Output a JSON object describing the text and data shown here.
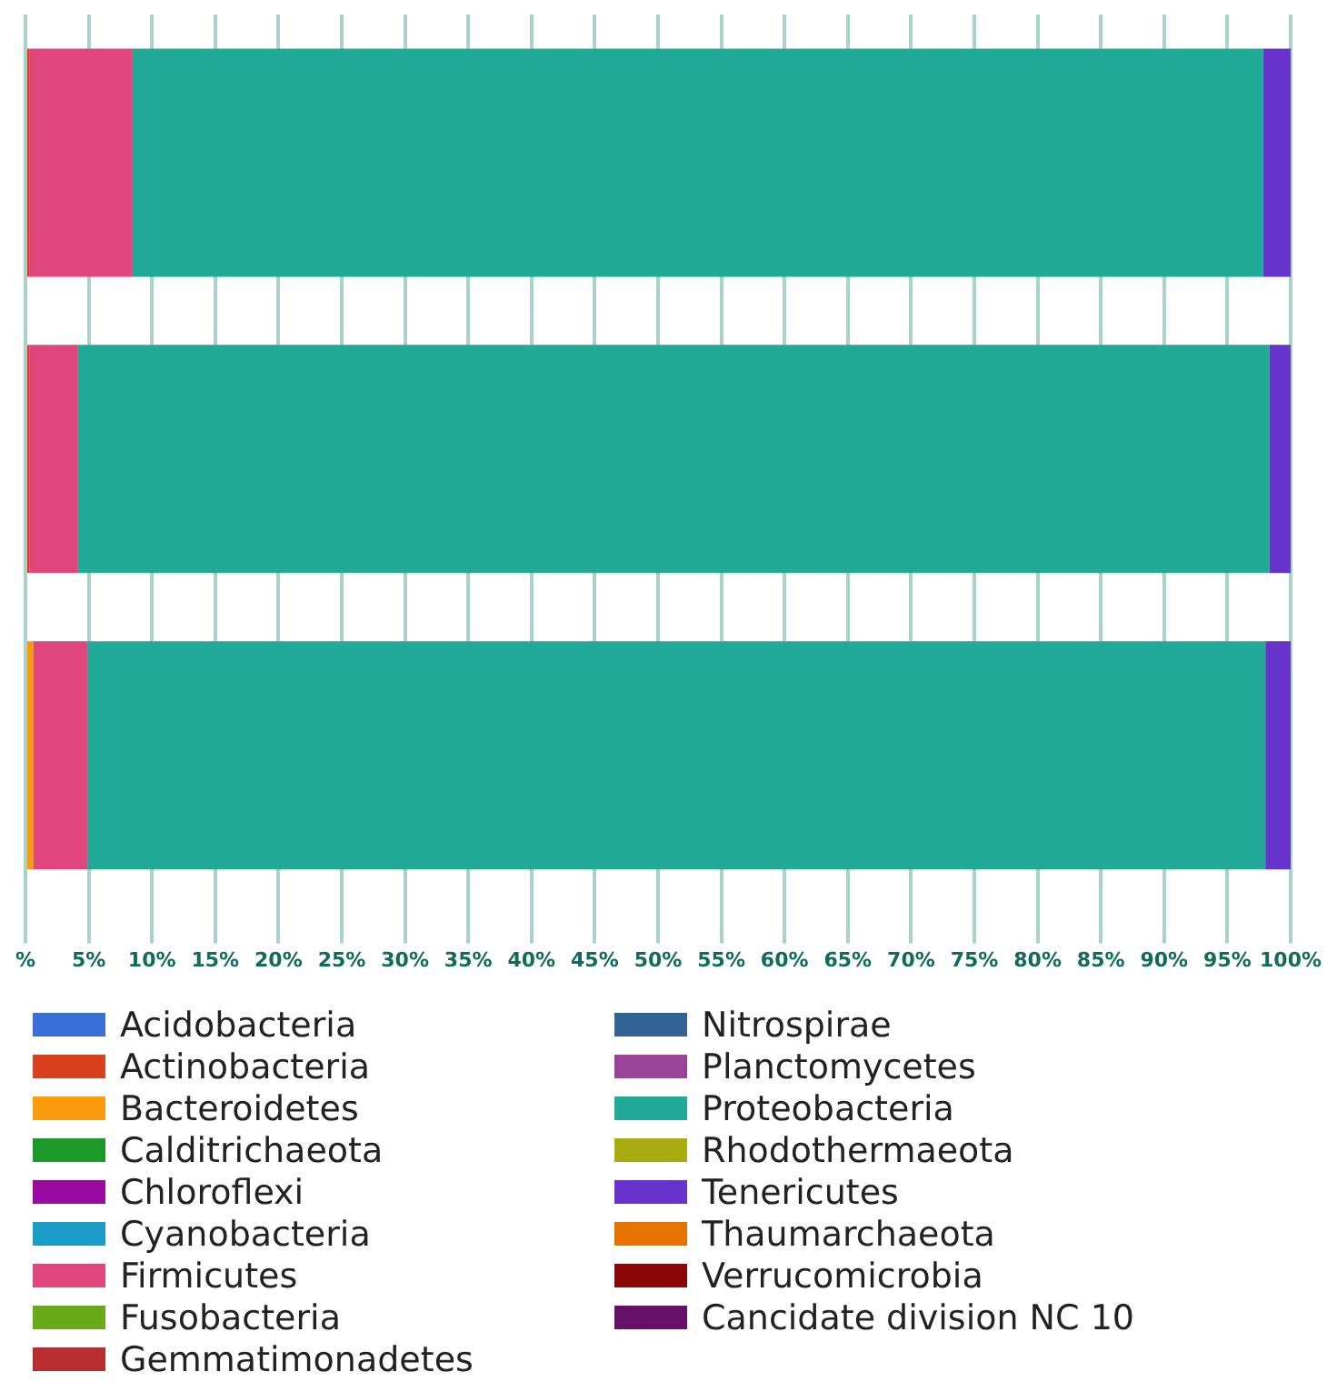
{
  "chart_data": {
    "type": "bar",
    "orientation": "horizontal",
    "stacked": true,
    "categories": [
      null,
      null,
      null
    ],
    "series": [
      {
        "name": "Acidobacteria",
        "color": "#3a6fd8",
        "values": [
          0,
          0,
          0
        ]
      },
      {
        "name": "Actinobacteria",
        "color": "#d9401c",
        "values": [
          0.3,
          0.3,
          0
        ]
      },
      {
        "name": "Bacteroidetes",
        "color": "#f99b0c",
        "values": [
          0,
          0,
          0.6
        ]
      },
      {
        "name": "Calditrichaeota",
        "color": "#1b9a2a",
        "values": [
          0,
          0,
          0
        ]
      },
      {
        "name": "Chloroflexi",
        "color": "#9a0c9f",
        "values": [
          0,
          0,
          0
        ]
      },
      {
        "name": "Cyanobacteria",
        "color": "#1a9bc8",
        "values": [
          0,
          0,
          0
        ]
      },
      {
        "name": "Firmicutes",
        "color": "#e0457b",
        "values": [
          8.1,
          3.8,
          4.3
        ]
      },
      {
        "name": "Fusobacteria",
        "color": "#6aaa1a",
        "values": [
          0,
          0,
          0
        ]
      },
      {
        "name": "Gemmatimonadetes",
        "color": "#b82e2e",
        "values": [
          0,
          0,
          0
        ]
      },
      {
        "name": "Nitrospirae",
        "color": "#316395",
        "values": [
          0,
          0,
          0
        ]
      },
      {
        "name": "Planctomycetes",
        "color": "#994499",
        "values": [
          0,
          0,
          0
        ]
      },
      {
        "name": "Proteobacteria",
        "color": "#22aa99",
        "values": [
          89.4,
          94.2,
          93.1
        ]
      },
      {
        "name": "Rhodothermaeota",
        "color": "#aaaa11",
        "values": [
          0,
          0,
          0
        ]
      },
      {
        "name": "Tenericutes",
        "color": "#6633cc",
        "values": [
          2.2,
          1.7,
          2.0
        ]
      },
      {
        "name": "Thaumarchaeota",
        "color": "#e67300",
        "values": [
          0,
          0,
          0
        ]
      },
      {
        "name": "Verrucomicrobia",
        "color": "#8b0707",
        "values": [
          0,
          0,
          0
        ]
      },
      {
        "name": "Cancidate division NC 10",
        "color": "#651067",
        "values": [
          0,
          0,
          0
        ]
      }
    ],
    "xlim": [
      0,
      100
    ],
    "xticks": [
      {
        "value": 0,
        "label": "%"
      },
      {
        "value": 5,
        "label": "5%"
      },
      {
        "value": 10,
        "label": "10%"
      },
      {
        "value": 15,
        "label": "15%"
      },
      {
        "value": 20,
        "label": "20%"
      },
      {
        "value": 25,
        "label": "25%"
      },
      {
        "value": 30,
        "label": "30%"
      },
      {
        "value": 35,
        "label": "35%"
      },
      {
        "value": 40,
        "label": "40%"
      },
      {
        "value": 45,
        "label": "45%"
      },
      {
        "value": 50,
        "label": "50%"
      },
      {
        "value": 55,
        "label": "55%"
      },
      {
        "value": 60,
        "label": "60%"
      },
      {
        "value": 65,
        "label": "65%"
      },
      {
        "value": 70,
        "label": "70%"
      },
      {
        "value": 75,
        "label": "75%"
      },
      {
        "value": 80,
        "label": "80%"
      },
      {
        "value": 85,
        "label": "85%"
      },
      {
        "value": 90,
        "label": "90%"
      },
      {
        "value": 95,
        "label": "95%"
      },
      {
        "value": 100,
        "label": "100%"
      }
    ],
    "grid": "x",
    "tick_labels": "x",
    "legend": "bottom"
  }
}
